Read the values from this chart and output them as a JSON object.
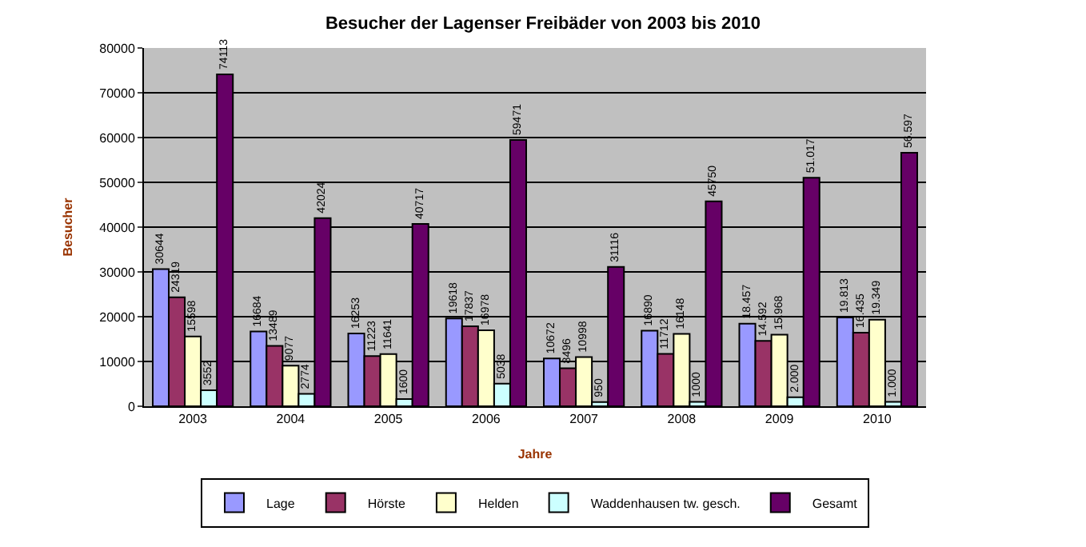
{
  "chart_data": {
    "type": "bar",
    "title": "Besucher der Lagenser Freibäder von 2003 bis 2010",
    "xlabel": "Jahre",
    "ylabel": "Besucher",
    "categories": [
      "2003",
      "2004",
      "2005",
      "2006",
      "2007",
      "2008",
      "2009",
      "2010"
    ],
    "series": [
      {
        "name": "Lage",
        "color": "#9999ff",
        "values": [
          30644,
          16684,
          16253,
          19618,
          10672,
          16890,
          18457,
          19813
        ],
        "value_labels": [
          "30644",
          "16684",
          "16253",
          "19618",
          "10672",
          "16890",
          "18.457",
          "19.813"
        ]
      },
      {
        "name": "Hörste",
        "color": "#993366",
        "values": [
          24319,
          13489,
          11223,
          17837,
          8496,
          11712,
          14592,
          16435
        ],
        "value_labels": [
          "24319",
          "13489",
          "11223",
          "17837",
          "8496",
          "11712",
          "14.592",
          "16.435"
        ]
      },
      {
        "name": "Helden",
        "color": "#ffffcc",
        "values": [
          15598,
          9077,
          11641,
          16978,
          10998,
          16148,
          15968,
          19349
        ],
        "value_labels": [
          "15598",
          "9077",
          "11641",
          "16978",
          "10998",
          "16148",
          "15.968",
          "19.349"
        ]
      },
      {
        "name": "Waddenhausen tw. gesch.",
        "color": "#ccffff",
        "values": [
          3552,
          2774,
          1600,
          5038,
          950,
          1000,
          2000,
          1000
        ],
        "value_labels": [
          "3552",
          "2774",
          "1600",
          "5038",
          "950",
          "1000",
          "2.000",
          "1.000"
        ]
      },
      {
        "name": "Gesamt",
        "color": "#660066",
        "values": [
          74113,
          42024,
          40717,
          59471,
          31116,
          45750,
          51017,
          56597
        ],
        "value_labels": [
          "74113",
          "42024",
          "40717",
          "59471",
          "31116",
          "45750",
          "51.017",
          "56.597"
        ]
      }
    ],
    "ylim": [
      0,
      80000
    ],
    "yticks": [
      0,
      10000,
      20000,
      30000,
      40000,
      50000,
      60000,
      70000,
      80000
    ],
    "grid": "y",
    "legend": "bottom"
  }
}
